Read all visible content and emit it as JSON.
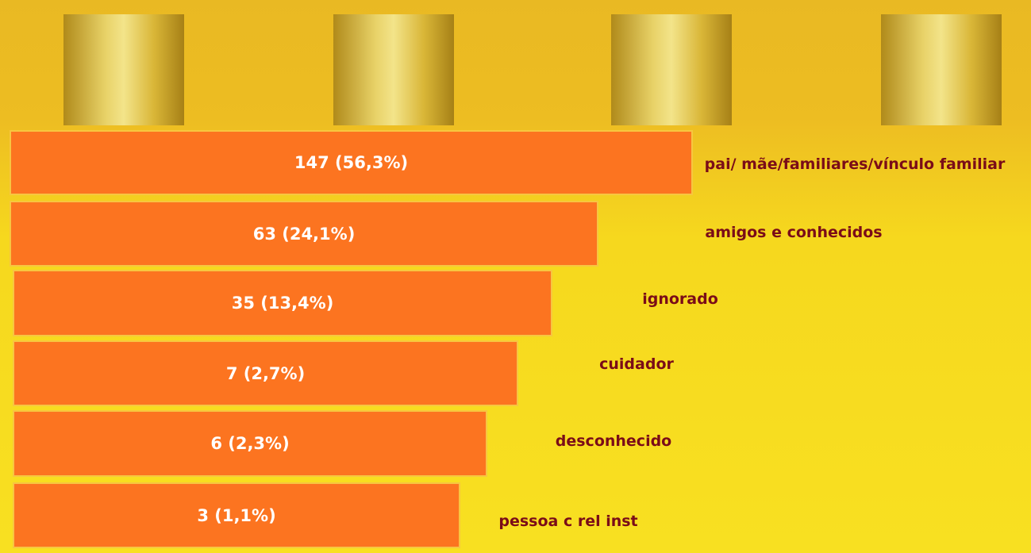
{
  "rows": [
    {
      "value_label": "147 (56,3%)",
      "label": "pai/ mãe/familiares/vínculo familiar"
    },
    {
      "value_label": "63 (24,1%)",
      "label": "amigos e conhecidos"
    },
    {
      "value_label": "35 (13,4%)",
      "label": "ignorado"
    },
    {
      "value_label": "7 (2,7%)",
      "label": "cuidador"
    },
    {
      "value_label": "6 (2,3%)",
      "label": "desconhecido"
    },
    {
      "value_label": "3 (1,1%)",
      "label": "pessoa c rel inst"
    }
  ]
}
